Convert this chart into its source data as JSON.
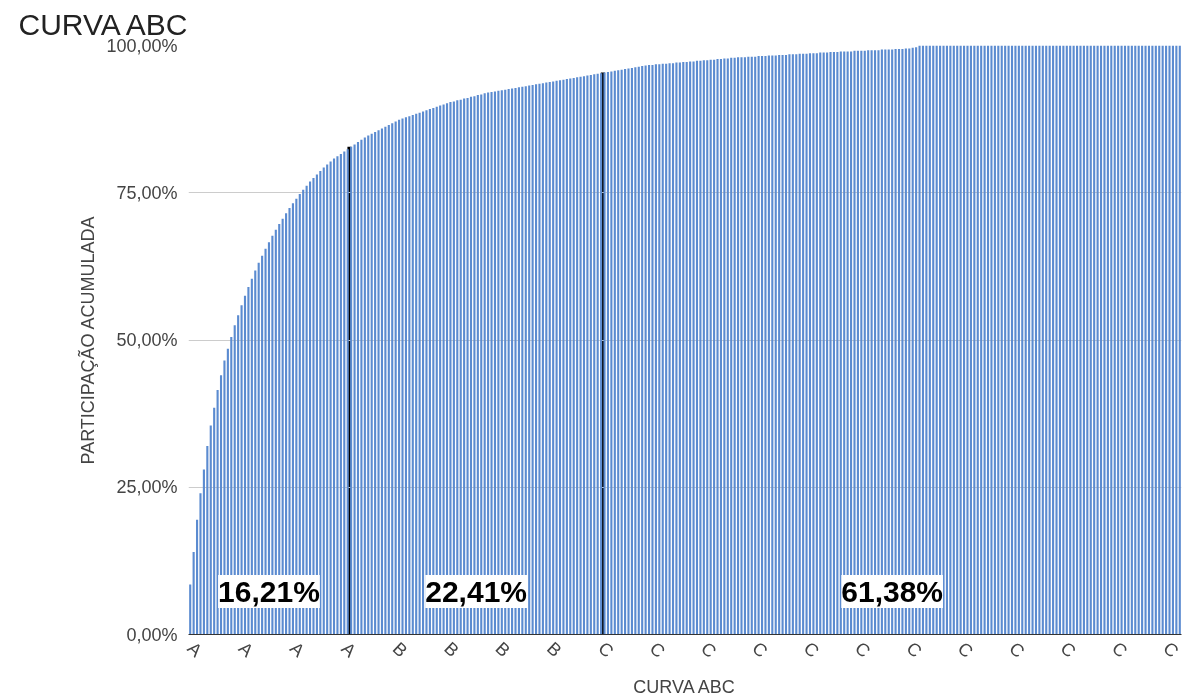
{
  "chart_data": {
    "type": "bar",
    "title": "CURVA ABC",
    "xlabel": "CURVA ABC",
    "ylabel": "PARTICIPAÇÃO ACUMULADA",
    "categories": [
      "A",
      null,
      null,
      null,
      null,
      null,
      null,
      null,
      null,
      null,
      null,
      null,
      null,
      null,
      null,
      "A",
      null,
      null,
      null,
      null,
      null,
      null,
      null,
      null,
      null,
      null,
      null,
      null,
      null,
      null,
      "A",
      null,
      null,
      null,
      null,
      null,
      null,
      null,
      null,
      null,
      null,
      null,
      null,
      null,
      null,
      "A",
      null,
      null,
      null,
      null,
      null,
      null,
      null,
      null,
      null,
      null,
      null,
      null,
      null,
      null,
      "B",
      null,
      null,
      null,
      null,
      null,
      null,
      null,
      null,
      null,
      null,
      null,
      null,
      null,
      null,
      "B",
      null,
      null,
      null,
      null,
      null,
      null,
      null,
      null,
      null,
      null,
      null,
      null,
      null,
      null,
      "B",
      null,
      null,
      null,
      null,
      null,
      null,
      null,
      null,
      null,
      null,
      null,
      null,
      null,
      null,
      "B",
      null,
      null,
      null,
      null,
      null,
      null,
      null,
      null,
      null,
      null,
      null,
      null,
      null,
      null,
      "C",
      null,
      null,
      null,
      null,
      null,
      null,
      null,
      null,
      null,
      null,
      null,
      null,
      null,
      null,
      "C",
      null,
      null,
      null,
      null,
      null,
      null,
      null,
      null,
      null,
      null,
      null,
      null,
      null,
      null,
      "C",
      null,
      null,
      null,
      null,
      null,
      null,
      null,
      null,
      null,
      null,
      null,
      null,
      null,
      null,
      "C",
      null,
      null,
      null,
      null,
      null,
      null,
      null,
      null,
      null,
      null,
      null,
      null,
      null,
      null,
      "C",
      null,
      null,
      null,
      null,
      null,
      null,
      null,
      null,
      null,
      null,
      null,
      null,
      null,
      null,
      "C",
      null,
      null,
      null,
      null,
      null,
      null,
      null,
      null,
      null,
      null,
      null,
      null,
      null,
      null,
      "C",
      null,
      null,
      null,
      null,
      null,
      null,
      null,
      null,
      null,
      null,
      null,
      null,
      null,
      null,
      "C",
      null,
      null,
      null,
      null,
      null,
      null,
      null,
      null,
      null,
      null,
      null,
      null,
      null,
      null,
      "C",
      null,
      null,
      null,
      null,
      null,
      null,
      null,
      null,
      null,
      null,
      null,
      null,
      null,
      null,
      "C",
      null,
      null,
      null,
      null,
      null,
      null,
      null,
      null,
      null,
      null,
      null,
      null,
      null,
      null,
      "C",
      null,
      null,
      null,
      null,
      null,
      null,
      null,
      null,
      null,
      null,
      null,
      null,
      null,
      null,
      "C",
      null,
      null,
      null,
      null
    ],
    "values": [
      8.5,
      14,
      19.5,
      24,
      28,
      32,
      35.5,
      38.5,
      41.5,
      44,
      46.5,
      48.5,
      50.5,
      52.5,
      54.2,
      55.9,
      57.5,
      59.0,
      60.4,
      61.8,
      63.1,
      64.3,
      65.5,
      66.6,
      67.7,
      68.7,
      69.7,
      70.6,
      71.5,
      72.4,
      73.2,
      74.0,
      74.8,
      75.5,
      76.2,
      76.9,
      77.5,
      78.1,
      78.7,
      79.3,
      79.8,
      80.3,
      80.8,
      81.2,
      81.6,
      82.0,
      82.4,
      82.8,
      83.2,
      83.6,
      84.0,
      84.4,
      84.7,
      85.0,
      85.3,
      85.6,
      85.9,
      86.2,
      86.5,
      86.8,
      87.1,
      87.4,
      87.6,
      87.8,
      88.0,
      88.2,
      88.4,
      88.6,
      88.8,
      89.0,
      89.2,
      89.4,
      89.6,
      89.8,
      90.0,
      90.2,
      90.4,
      90.5,
      90.7,
      90.8,
      91.0,
      91.1,
      91.3,
      91.4,
      91.6,
      91.7,
      91.9,
      92.0,
      92.1,
      92.2,
      92.3,
      92.4,
      92.5,
      92.6,
      92.7,
      92.8,
      92.9,
      93.0,
      93.1,
      93.2,
      93.3,
      93.4,
      93.5,
      93.6,
      93.7,
      93.8,
      93.9,
      94.0,
      94.1,
      94.2,
      94.3,
      94.4,
      94.5,
      94.6,
      94.7,
      94.8,
      94.9,
      95.0,
      95.1,
      95.2,
      95.3,
      95.4,
      95.5,
      95.6,
      95.7,
      95.8,
      95.9,
      96.0,
      96.1,
      96.2,
      96.3,
      96.4,
      96.5,
      96.6,
      96.7,
      96.7,
      96.8,
      96.8,
      96.9,
      96.9,
      97.0,
      97.0,
      97.1,
      97.1,
      97.2,
      97.2,
      97.3,
      97.3,
      97.4,
      97.4,
      97.5,
      97.5,
      97.6,
      97.6,
      97.7,
      97.7,
      97.8,
      97.8,
      97.9,
      97.9,
      98.0,
      98.0,
      98.0,
      98.1,
      98.1,
      98.1,
      98.2,
      98.2,
      98.2,
      98.3,
      98.3,
      98.3,
      98.4,
      98.4,
      98.4,
      98.5,
      98.5,
      98.5,
      98.6,
      98.6,
      98.6,
      98.7,
      98.7,
      98.7,
      98.8,
      98.8,
      98.8,
      98.9,
      98.9,
      98.9,
      99.0,
      99.0,
      99.0,
      99.0,
      99.1,
      99.1,
      99.1,
      99.1,
      99.2,
      99.2,
      99.2,
      99.2,
      99.3,
      99.3,
      99.3,
      99.3,
      99.4,
      99.4,
      99.4,
      99.5,
      99.5,
      99.6,
      99.7,
      100,
      100,
      100,
      100,
      100,
      100,
      100,
      100,
      100,
      100,
      100,
      100,
      100,
      100,
      100,
      100,
      100,
      100,
      100,
      100,
      100,
      100,
      100,
      100,
      100,
      100,
      100,
      100,
      100,
      100,
      100,
      100,
      100,
      100,
      100,
      100,
      100,
      100,
      100,
      100,
      100,
      100,
      100,
      100,
      100,
      100,
      100,
      100,
      100,
      100,
      100,
      100,
      100,
      100,
      100,
      100,
      100,
      100,
      100,
      100,
      100,
      100,
      100,
      100,
      100,
      100,
      100,
      100,
      100,
      100,
      100,
      100,
      100,
      100,
      100,
      100,
      100
    ],
    "color": "#5b8bd0",
    "ylim": [
      0,
      100
    ],
    "yticks": [
      {
        "value": 0,
        "label": "0,00%"
      },
      {
        "value": 25,
        "label": "25,00%"
      },
      {
        "value": 50,
        "label": "50,00%"
      },
      {
        "value": 75,
        "label": "75,00%"
      },
      {
        "value": 100,
        "label": "100,00%"
      }
    ],
    "grid": "y",
    "annotations": [
      "16,21%",
      "22,41%",
      "61,38%"
    ]
  }
}
